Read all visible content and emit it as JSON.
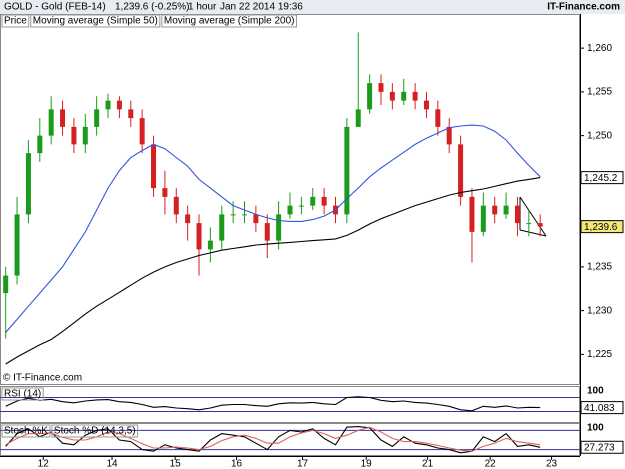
{
  "header": {
    "title": "GOLD - Gold (FEB-14)",
    "last": "1,239.6 (-0.25%)",
    "interval": "1 hour",
    "timestamp": "Jan 22 2014 19:36",
    "brand": "IT-Finance.com"
  },
  "chart_data": [
    {
      "type": "candlestick",
      "name": "Price",
      "copyright": "© IT-Finance.com",
      "up_color": "#1a9c1a",
      "down_color": "#d42020",
      "open": [
        1232,
        1234,
        1241,
        1248,
        1250,
        1253,
        1251,
        1249,
        1251,
        1253,
        1254,
        1253,
        1252,
        1249,
        1244,
        1243,
        1241,
        1240,
        1237,
        1238,
        1241,
        1241,
        1241,
        1240,
        1238,
        1241,
        1242,
        1242,
        1243,
        1242,
        1241,
        1251,
        1253,
        1256,
        1255,
        1254,
        1255,
        1254,
        1253,
        1251,
        1249,
        1243,
        1239,
        1242,
        1241,
        1242,
        1240,
        1240
      ],
      "high": [
        1235,
        1243,
        1249.5,
        1252,
        1254.5,
        1254,
        1252,
        1252.5,
        1254.5,
        1254.8,
        1254.5,
        1254,
        1253,
        1250,
        1246,
        1244,
        1242,
        1241,
        1239.5,
        1242,
        1242.5,
        1242.5,
        1242,
        1241,
        1242.5,
        1243.5,
        1243,
        1244,
        1244,
        1243,
        1252,
        1261.8,
        1257,
        1257,
        1256,
        1256.5,
        1256,
        1255,
        1254,
        1252,
        1250,
        1244,
        1243.5,
        1243,
        1243.5,
        1243,
        1241.5,
        1241
      ],
      "low": [
        1226.8,
        1233,
        1240,
        1247,
        1249,
        1250,
        1248,
        1248,
        1250,
        1252,
        1252,
        1251,
        1248,
        1243,
        1241,
        1240,
        1238,
        1234,
        1235.5,
        1237,
        1240,
        1240,
        1239,
        1236,
        1237,
        1240.5,
        1241,
        1241.5,
        1241,
        1240,
        1240,
        1251,
        1252.5,
        1253.5,
        1253,
        1253.5,
        1253,
        1252,
        1250,
        1248,
        1242,
        1235.5,
        1238.5,
        1240,
        1240.5,
        1238.5,
        1238.5,
        1238.5
      ],
      "close": [
        1234,
        1241,
        1248,
        1250,
        1253,
        1251,
        1249,
        1251,
        1253,
        1254,
        1253,
        1252,
        1249,
        1244,
        1243,
        1241,
        1240,
        1237,
        1238,
        1241,
        1241,
        1241,
        1240,
        1238,
        1241,
        1242,
        1242,
        1243,
        1242,
        1241,
        1251,
        1253,
        1256,
        1255,
        1254,
        1255,
        1254,
        1253,
        1251,
        1249,
        1243,
        1239,
        1242,
        1241,
        1242,
        1240,
        1240,
        1239.6
      ],
      "close_label": {
        "value": 1239.6,
        "label": "1,239.6"
      },
      "label_color": "#f3e77a",
      "series": [
        {
          "name": "Moving average (Simple 50)",
          "color": "#3355dd",
          "values": [
            1227.5,
            1229,
            1230.5,
            1232,
            1233.5,
            1235,
            1237,
            1239,
            1241.5,
            1244,
            1246,
            1247.5,
            1248.3,
            1249,
            1248.5,
            1247.5,
            1246.5,
            1245,
            1244,
            1243,
            1242,
            1241.5,
            1241,
            1240.6,
            1240.3,
            1240.2,
            1240.2,
            1240.4,
            1240.8,
            1241.5,
            1242.8,
            1244,
            1245.3,
            1246.3,
            1247.2,
            1248.1,
            1249,
            1249.7,
            1250.3,
            1250.9,
            1251.1,
            1251.2,
            1251.1,
            1250.5,
            1249.5,
            1248,
            1246.6,
            1245.3
          ]
        },
        {
          "name": "Moving average (Simple 200)",
          "color": "#000000",
          "values": [
            1223.9,
            1224.7,
            1225.4,
            1226.1,
            1226.7,
            1227.6,
            1228.6,
            1229.6,
            1230.5,
            1231.3,
            1232.1,
            1232.9,
            1233.7,
            1234.4,
            1235,
            1235.5,
            1235.9,
            1236.3,
            1236.6,
            1236.9,
            1237.1,
            1237.3,
            1237.5,
            1237.6,
            1237.7,
            1237.8,
            1237.9,
            1238,
            1238.1,
            1238.2,
            1238.6,
            1239.2,
            1239.9,
            1240.5,
            1241,
            1241.5,
            1242,
            1242.4,
            1242.8,
            1243.2,
            1243.5,
            1243.7,
            1243.9,
            1244.2,
            1244.5,
            1244.8,
            1245,
            1245.2
          ],
          "last_label": {
            "value": 1245.2,
            "label": "1,245.2"
          }
        }
      ],
      "xlim": [
        0,
        51
      ],
      "ylim": [
        1221.5,
        1262.3
      ],
      "yticks": [
        {
          "value": 1225,
          "label": "1,225"
        },
        {
          "value": 1230,
          "label": "1,230"
        },
        {
          "value": 1235,
          "label": "1,235"
        },
        {
          "value": 1250,
          "label": "1,250"
        },
        {
          "value": 1255,
          "label": "1,255"
        },
        {
          "value": 1260,
          "label": "1,260"
        }
      ]
    },
    {
      "type": "line",
      "xlim": [
        0,
        51
      ],
      "ylim": [
        0,
        100
      ],
      "yticks": [
        100
      ],
      "levels": [
        30,
        70
      ],
      "level_color": "#333399",
      "series": [
        {
          "name": "RSI (14)",
          "color": "#000000",
          "values": [
            45,
            60,
            68,
            62,
            65,
            58,
            55,
            60,
            63,
            64,
            58,
            56,
            50,
            42,
            44,
            40,
            38,
            35,
            40,
            48,
            50,
            50,
            47,
            45,
            52,
            55,
            54,
            56,
            52,
            50,
            70,
            72,
            70,
            62,
            58,
            60,
            56,
            54,
            50,
            45,
            35,
            32,
            45,
            42,
            46,
            40,
            42,
            41.083
          ],
          "last_label": {
            "value": 41.083,
            "label": "41.083"
          }
        }
      ]
    },
    {
      "type": "line",
      "xlim": [
        0,
        51
      ],
      "ylim": [
        0,
        100
      ],
      "yticks": [
        100
      ],
      "levels": [
        20,
        80
      ],
      "level_color": "#333399",
      "series": [
        {
          "name": "Stoch %K",
          "color": "#000000",
          "values": [
            30,
            70,
            85,
            60,
            75,
            40,
            35,
            65,
            80,
            85,
            50,
            45,
            20,
            15,
            35,
            25,
            20,
            15,
            50,
            70,
            65,
            60,
            40,
            20,
            60,
            80,
            75,
            85,
            55,
            35,
            90,
            92,
            88,
            50,
            30,
            60,
            40,
            35,
            25,
            20,
            10,
            15,
            60,
            45,
            70,
            30,
            35,
            27.273
          ],
          "last_label": {
            "value": 27.273,
            "label": "27.273"
          }
        },
        {
          "name": "Stoch %D (14,3,5)",
          "color": "#e06060",
          "values": [
            35,
            55,
            70,
            70,
            72,
            58,
            50,
            50,
            60,
            75,
            70,
            55,
            38,
            25,
            25,
            28,
            25,
            20,
            30,
            48,
            60,
            65,
            55,
            40,
            40,
            60,
            72,
            80,
            70,
            55,
            65,
            80,
            90,
            75,
            55,
            45,
            45,
            40,
            33,
            25,
            18,
            15,
            30,
            40,
            55,
            45,
            40,
            35
          ]
        }
      ],
      "xticks": [
        {
          "value": 3.8,
          "label": "12"
        },
        {
          "value": 9.85,
          "label": "14"
        },
        {
          "value": 15.4,
          "label": "15"
        },
        {
          "value": 20.8,
          "label": "16"
        },
        {
          "value": 26.6,
          "label": "17"
        },
        {
          "value": 32.2,
          "label": "19"
        },
        {
          "value": 37.6,
          "label": "21"
        },
        {
          "value": 43.1,
          "label": "22"
        },
        {
          "value": 48.5,
          "label": "23"
        }
      ]
    }
  ]
}
